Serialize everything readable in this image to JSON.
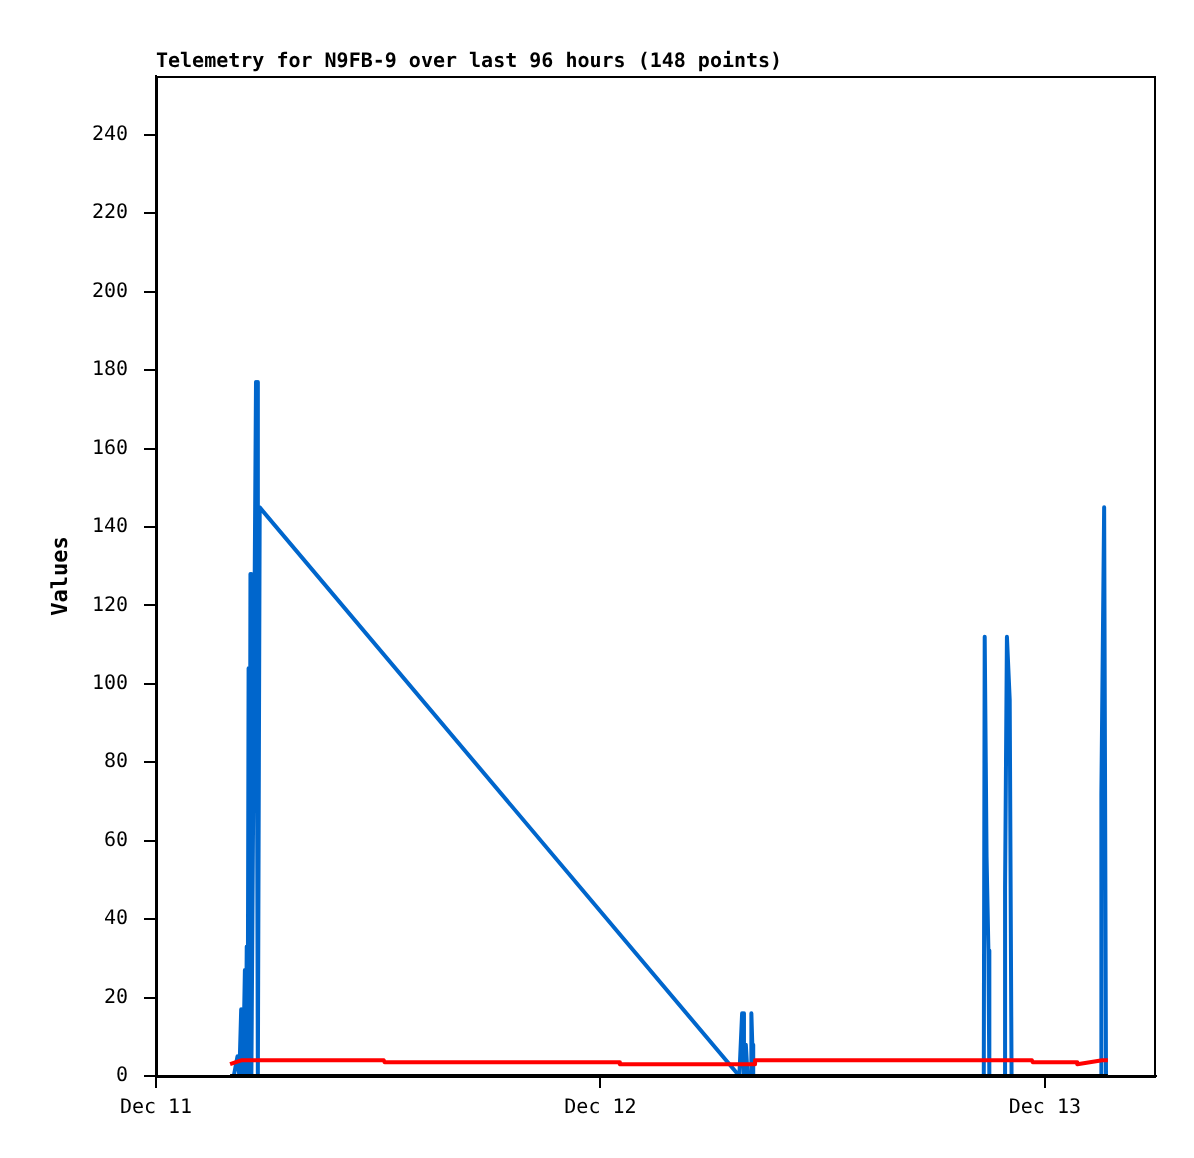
{
  "chart_data": {
    "type": "line",
    "title": "Telemetry for N9FB-9 over last 96 hours (148 points)",
    "ylabel": "Values",
    "xlim": [
      "--12-11T00:00",
      "--12-13T06:00"
    ],
    "xticks": [
      {
        "value": "--12-11",
        "label": "Dec 11"
      },
      {
        "value": "--12-12",
        "label": "Dec 12"
      },
      {
        "value": "--12-13",
        "label": "Dec 13"
      }
    ],
    "ylim": [
      0,
      255
    ],
    "yticks": [
      0,
      20,
      40,
      60,
      80,
      100,
      120,
      140,
      160,
      180,
      200,
      220,
      240
    ],
    "grid": false,
    "legend": false,
    "series": [
      {
        "color": "#000000",
        "x": [
          "--12-11T04:00",
          "--12-13T03:24"
        ],
        "values": [
          0,
          0
        ]
      },
      {
        "color": "#ff0000",
        "x": [
          "--12-11T04:00",
          "--12-11T04:36",
          "--12-11T12:18",
          "--12-11T12:21",
          "--12-12T01:00",
          "--12-12T01:03",
          "--12-12T08:18",
          "--12-12T08:21",
          "--12-12T23:18",
          "--12-12T23:21",
          "--12-13T01:42",
          "--12-13T01:45",
          "--12-13T03:06",
          "--12-13T03:24"
        ],
        "values": [
          3,
          4,
          4,
          3.5,
          3.5,
          3,
          3,
          4,
          4,
          3.5,
          3.5,
          3,
          4,
          4
        ]
      },
      {
        "color": "#0066cc",
        "x": [
          "--12-11T04:12",
          "--12-11T04:24",
          "--12-11T04:30",
          "--12-11T04:36",
          "--12-11T04:42",
          "--12-11T04:48",
          "--12-11T04:51",
          "--12-11T04:54",
          "--12-11T04:57",
          "--12-11T05:00",
          "--12-11T05:03",
          "--12-11T05:06",
          "--12-11T05:09",
          "--12-11T05:24",
          "--12-11T05:30",
          "--12-11T05:36",
          "--12-12T07:30",
          "--12-12T07:39",
          "--12-12T07:45",
          "--12-12T07:51",
          "--12-12T07:57",
          "--12-12T08:06",
          "--12-12T08:09",
          "--12-12T08:12",
          "--12-12T08:15",
          "--12-12T20:42",
          "--12-12T20:45",
          "--12-12T20:51",
          "--12-12T20:57",
          "--12-12T21:00",
          "--12-12T21:48",
          "--12-12T21:51",
          "--12-12T21:57",
          "--12-12T22:06",
          "--12-12T22:12",
          "--12-13T03:00",
          "--12-13T03:03",
          "--12-13T03:12",
          "--12-13T03:18"
        ],
        "values": [
          0,
          5,
          0,
          17,
          0,
          27,
          0,
          33,
          0,
          104,
          0,
          128,
          0,
          177,
          0,
          145,
          0,
          16,
          0,
          8,
          0,
          0,
          16,
          8,
          0,
          0,
          112,
          56,
          32,
          0,
          0,
          48,
          112,
          96,
          0,
          0,
          72,
          145,
          0
        ]
      }
    ]
  }
}
